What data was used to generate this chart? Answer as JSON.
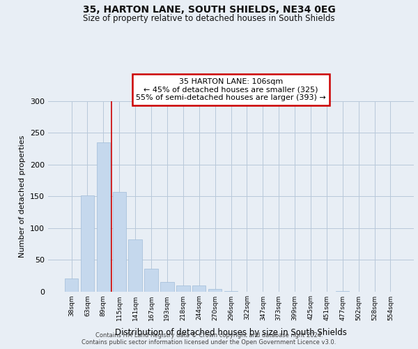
{
  "title": "35, HARTON LANE, SOUTH SHIELDS, NE34 0EG",
  "subtitle": "Size of property relative to detached houses in South Shields",
  "xlabel": "Distribution of detached houses by size in South Shields",
  "ylabel": "Number of detached properties",
  "bar_color": "#c5d8ed",
  "bar_edge_color": "#a0bcd8",
  "background_color": "#e8eef5",
  "plot_bg_color": "#e8eef5",
  "grid_color": "#b8c8da",
  "categories": [
    "38sqm",
    "63sqm",
    "89sqm",
    "115sqm",
    "141sqm",
    "167sqm",
    "193sqm",
    "218sqm",
    "244sqm",
    "270sqm",
    "296sqm",
    "322sqm",
    "347sqm",
    "373sqm",
    "399sqm",
    "425sqm",
    "451sqm",
    "477sqm",
    "502sqm",
    "528sqm",
    "554sqm"
  ],
  "values": [
    20,
    151,
    235,
    157,
    82,
    36,
    15,
    9,
    9,
    4,
    1,
    0,
    0,
    0,
    0,
    0,
    0,
    1,
    0,
    0,
    0
  ],
  "ylim": [
    0,
    300
  ],
  "yticks": [
    0,
    50,
    100,
    150,
    200,
    250,
    300
  ],
  "vline_x_index": 2,
  "annotation_title": "35 HARTON LANE: 106sqm",
  "annotation_line1": "← 45% of detached houses are smaller (325)",
  "annotation_line2": "55% of semi-detached houses are larger (393) →",
  "annotation_box_color": "#ffffff",
  "annotation_box_edge_color": "#cc0000",
  "vline_color": "#cc0000",
  "footer1": "Contains HM Land Registry data © Crown copyright and database right 2024.",
  "footer2": "Contains public sector information licensed under the Open Government Licence v3.0."
}
